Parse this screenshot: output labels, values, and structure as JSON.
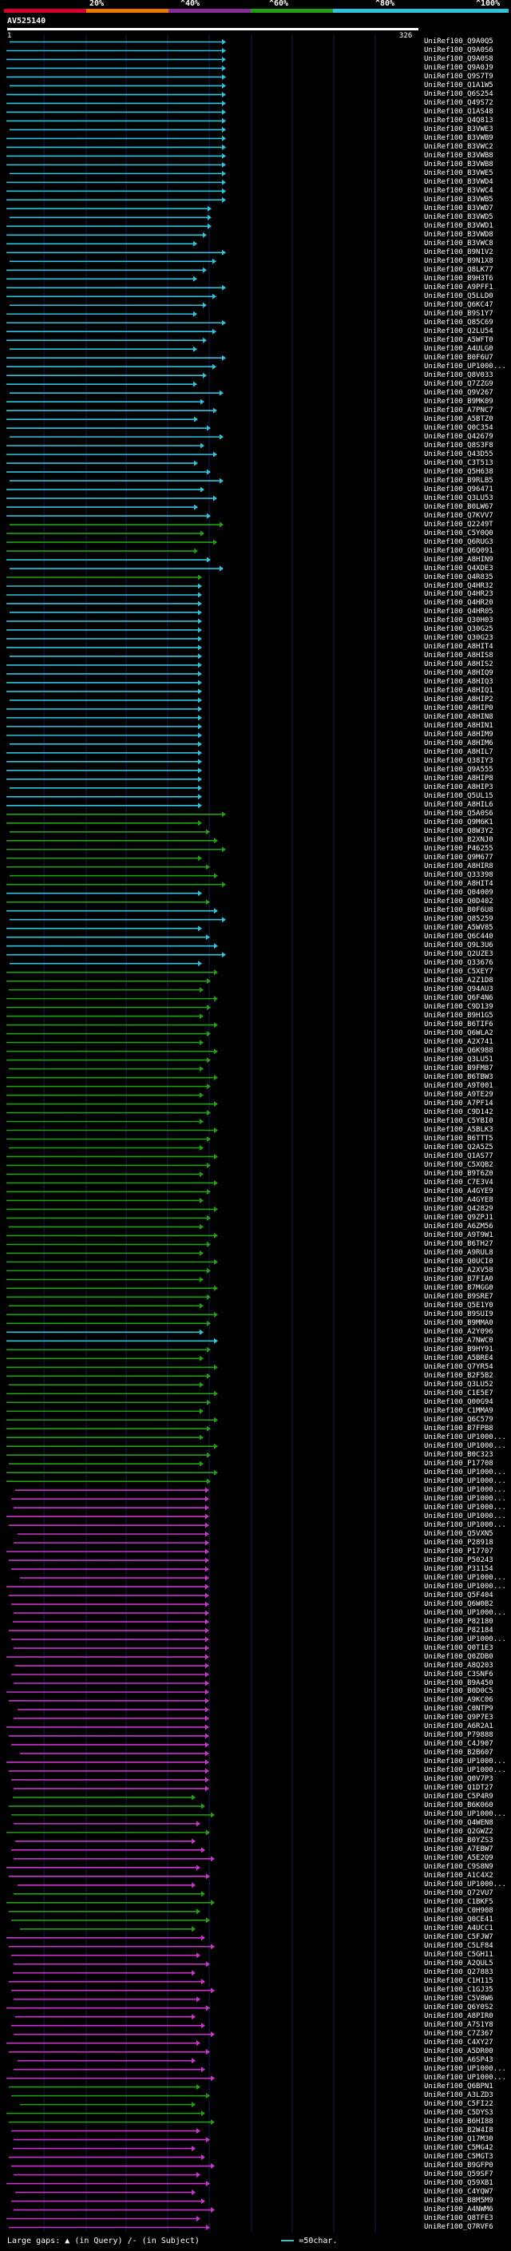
{
  "legend": {
    "marks": [
      "20%",
      "^40%",
      "^60%",
      "^80%",
      "^100%"
    ],
    "colors": [
      "#d8002b",
      "#e87a00",
      "#8a2a9c",
      "#22a012",
      "#2cc4df"
    ]
  },
  "query": {
    "id": "AV525140",
    "start": "1",
    "end": "326"
  },
  "colors": {
    "cyan": "#2cc4df",
    "green": "#22a012",
    "magenta": "#cc33cc",
    "grid": "#181a52"
  },
  "hits": [
    "UniRef100_Q9A0Q5",
    "UniRef100_Q9A0S6",
    "UniRef100_Q9A0S8",
    "UniRef100_Q9A0J9",
    "UniRef100_Q9S7T9",
    "UniRef100_Q1A1W5",
    "UniRef100_Q6S254",
    "UniRef100_Q49S72",
    "UniRef100_Q1AS48",
    "UniRef100_Q4Q813",
    "UniRef100_B3VWE3",
    "UniRef100_B3VWB9",
    "UniRef100_B3VWC2",
    "UniRef100_B3VWB8",
    "UniRef100_B3VWB8",
    "UniRef100_B3VWE5",
    "UniRef100_B3VWD4",
    "UniRef100_B3VWC4",
    "UniRef100_B3VWB5",
    "UniRef100_B3VWD7",
    "UniRef100_B3VWD5",
    "UniRef100_B3VWD1",
    "UniRef100_B3VWD8",
    "UniRef100_B3VWC8",
    "UniRef100_B9N1V2",
    "UniRef100_B9N1X8",
    "UniRef100_Q8LK77",
    "UniRef100_B9H3T6",
    "UniRef100_A9PFF1",
    "UniRef100_Q5LLD0",
    "UniRef100_Q6KC47",
    "UniRef100_B9S1Y7",
    "UniRef100_Q85C69",
    "UniRef100_Q2LU54",
    "UniRef100_A5WFT0",
    "UniRef100_A4ULG0",
    "UniRef100_B0F6U7",
    "UniRef100_UP1000...",
    "UniRef100_Q8V033",
    "UniRef100_Q7ZZG9",
    "UniRef100_Q9V267",
    "UniRef100_B9MK09",
    "UniRef100_A7PNC7",
    "UniRef100_A5BTZ0",
    "UniRef100_Q0C354",
    "UniRef100_Q42679",
    "UniRef100_Q8S3F8",
    "UniRef100_Q43D55",
    "UniRef100_C3T513",
    "UniRef100_Q5H638",
    "UniRef100_B9RLB5",
    "UniRef100_Q96471",
    "UniRef100_Q3LU53",
    "UniRef100_B0LW67",
    "UniRef100_Q7KVV7",
    "UniRef100_Q2249T",
    "UniRef100_C5Y0Q0",
    "UniRef100_Q6RUG3",
    "UniRef100_Q6Q091",
    "UniRef100_A8HIN9",
    "UniRef100_Q4XDE3",
    "UniRef100_Q4R835",
    "UniRef100_Q4HR32",
    "UniRef100_Q4HR23",
    "UniRef100_Q4HR20",
    "UniRef100_Q4HR05",
    "UniRef100_Q30H03",
    "UniRef100_Q30G25",
    "UniRef100_Q30G23",
    "UniRef100_A8HIT4",
    "UniRef100_A8HIS8",
    "UniRef100_A8HIS2",
    "UniRef100_A8HIQ9",
    "UniRef100_A8HIQ3",
    "UniRef100_A8HIQ1",
    "UniRef100_A8HIP2",
    "UniRef100_A8HIP0",
    "UniRef100_A8HIN8",
    "UniRef100_A8HIN1",
    "UniRef100_A8HIM9",
    "UniRef100_A8HIM6",
    "UniRef100_A8HIL7",
    "UniRef100_Q38IY3",
    "UniRef100_Q9A555",
    "UniRef100_A8HIP8",
    "UniRef100_A8HIP3",
    "UniRef100_Q5UL15",
    "UniRef100_A8HIL6",
    "UniRef100_Q5A0S6",
    "UniRef100_Q9M6K1",
    "UniRef100_Q8W3Y2",
    "UniRef100_B2XNJ0",
    "UniRef100_P46255",
    "UniRef100_Q9M677",
    "UniRef100_A8HIR8",
    "UniRef100_Q33398",
    "UniRef100_A8HIT4",
    "UniRef100_Q04009",
    "UniRef100_Q0D402",
    "UniRef100_B0F6U8",
    "UniRef100_Q85259",
    "UniRef100_A5WV85",
    "UniRef100_Q6C440",
    "UniRef100_Q9L3U6",
    "UniRef100_Q2UZE3",
    "UniRef100_Q33676",
    "UniRef100_C5XEY7",
    "UniRef100_A2Z1D8",
    "UniRef100_Q94AU3",
    "UniRef100_Q6F4N6",
    "UniRef100_C9D139",
    "UniRef100_B9H1G5",
    "UniRef100_B6TIF6",
    "UniRef100_Q6WLA2",
    "UniRef100_A2X741",
    "UniRef100_Q6K988",
    "UniRef100_Q3LU51",
    "UniRef100_B9FM87",
    "UniRef100_B6TBW3",
    "UniRef100_A9T001",
    "UniRef100_A9TE29",
    "UniRef100_A7PF14",
    "UniRef100_C9D142",
    "UniRef100_C5YBI0",
    "UniRef100_A5BLK3",
    "UniRef100_B6TTT5",
    "UniRef100_Q2A5Z5",
    "UniRef100_Q1AS77",
    "UniRef100_C5XQB2",
    "UniRef100_B9T6Z0",
    "UniRef100_C7E3V4",
    "UniRef100_A4GYE9",
    "UniRef100_A4GYE8",
    "UniRef100_Q42829",
    "UniRef100_Q9ZPJ1",
    "UniRef100_A6ZM56",
    "UniRef100_A9T9W1",
    "UniRef100_B6TH27",
    "UniRef100_A9RUL8",
    "UniRef100_Q0UCI0",
    "UniRef100_A2XV58",
    "UniRef100_B7FIA0",
    "UniRef100_B7MGG0",
    "UniRef100_B9SRE7",
    "UniRef100_Q5E1Y0",
    "UniRef100_B9SUI9",
    "UniRef100_B9MMA0",
    "UniRef100_A2Y096",
    "UniRef100_A7NWC0",
    "UniRef100_B9HY91",
    "UniRef100_A5BRE4",
    "UniRef100_Q7YR54",
    "UniRef100_B2F5B2",
    "UniRef100_Q3LU52",
    "UniRef100_C1E5E7",
    "UniRef100_Q00G94",
    "UniRef100_C1MMA9",
    "UniRef100_Q6C579",
    "UniRef100_B7FPB8",
    "UniRef100_UP1000...",
    "UniRef100_UP1000...",
    "UniRef100_B0C323",
    "UniRef100_P17708",
    "UniRef100_UP1000...",
    "UniRef100_UP1000...",
    "UniRef100_UP1000...",
    "UniRef100_UP1000...",
    "UniRef100_UP1000...",
    "UniRef100_UP1000...",
    "UniRef100_UP1000...",
    "UniRef100_Q5VXN5",
    "UniRef100_P28918",
    "UniRef100_P17707",
    "UniRef100_P50243",
    "UniRef100_P31154",
    "UniRef100_UP1000...",
    "UniRef100_UP1000...",
    "UniRef100_Q5F404",
    "UniRef100_Q6W0B2",
    "UniRef100_UP1000...",
    "UniRef100_P82180",
    "UniRef100_P82184",
    "UniRef100_UP1000...",
    "UniRef100_Q0T1E3",
    "UniRef100_Q0ZDB0",
    "UniRef100_A8Q203",
    "UniRef100_C3SNF6",
    "UniRef100_B9A450",
    "UniRef100_B0D0C5",
    "UniRef100_A9KC06",
    "UniRef100_C0NTP9",
    "UniRef100_Q9P7E3",
    "UniRef100_A6R2A1",
    "UniRef100_P79888",
    "UniRef100_C4J907",
    "UniRef100_B2B607",
    "UniRef100_UP1000...",
    "UniRef100_UP1000...",
    "UniRef100_Q0V7P3",
    "UniRef100_Q1DT27",
    "UniRef100_C5P4R9",
    "UniRef100_B6K060",
    "UniRef100_UP1000...",
    "UniRef100_Q4WEN8",
    "UniRef100_Q2GWZ2",
    "UniRef100_B0YZS3",
    "UniRef100_A7EBW7",
    "UniRef100_A5E2Q9",
    "UniRef100_C9S8N9",
    "UniRef100_A1C4X2",
    "UniRef100_UP1000...",
    "UniRef100_Q72VU7",
    "UniRef100_C1BKF5",
    "UniRef100_C0H908",
    "UniRef100_Q0CE41",
    "UniRef100_A4UCC1",
    "UniRef100_C5FJW7",
    "UniRef100_C5LF84",
    "UniRef100_C5GH11",
    "UniRef100_A2QUL5",
    "UniRef100_Q27883",
    "UniRef100_C1H115",
    "UniRef100_C1GJ35",
    "UniRef100_C5V8W6",
    "UniRef100_Q6Y0S2",
    "UniRef100_A8PIR0",
    "UniRef100_A7S1Y8",
    "UniRef100_C7Z367",
    "UniRef100_C4XY27",
    "UniRef100_A5DR00",
    "UniRef100_A6SP43",
    "UniRef100_UP1000...",
    "UniRef100_UP1000...",
    "UniRef100_Q6BPN1",
    "UniRef100_A3LZD3",
    "UniRef100_C5FI22",
    "UniRef100_C5DYS3",
    "UniRef100_B6HI88",
    "UniRef100_B2W4I8",
    "UniRef100_Q17M30",
    "UniRef100_C5MG42",
    "UniRef100_C5MGT3",
    "UniRef100_B9GFP0",
    "UniRef100_Q59SF7",
    "UniRef100_Q59XB1",
    "UniRef100_C4YQW7",
    "UniRef100_B8M5M9",
    "UniRef100_A4NWM6",
    "UniRef100_Q8TFE3",
    "UniRef100_Q7RVF6"
  ],
  "footer": {
    "label": "Large gaps:",
    "query_mark": "▲",
    "query_text": "(in Query)",
    "subject_mark": "/-",
    "subject_text": "(in Subject)",
    "scale_text": "=50char."
  }
}
